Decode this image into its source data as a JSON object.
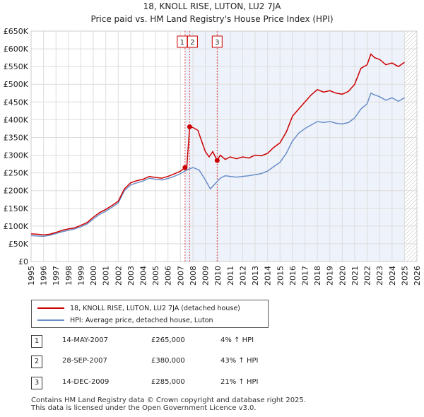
{
  "title": "18, KNOLL RISE, LUTON, LU2 7JA",
  "subtitle": "Price paid vs. HM Land Registry's House Price Index (HPI)",
  "legend": {
    "series1": "18, KNOLL RISE, LUTON, LU2 7JA (detached house)",
    "series2": "HPI: Average price, detached house, Luton"
  },
  "colors": {
    "price": "#cc0000",
    "hpi": "#6b8fc9",
    "shade": "#e8eef8",
    "grid": "#dddddd"
  },
  "transactions": [
    {
      "num": "1",
      "date": "14-MAY-2007",
      "price": "£265,000",
      "hpi": "4% ↑ HPI"
    },
    {
      "num": "2",
      "date": "28-SEP-2007",
      "price": "£380,000",
      "hpi": "43% ↑ HPI"
    },
    {
      "num": "3",
      "date": "14-DEC-2009",
      "price": "£285,000",
      "hpi": "21% ↑ HPI"
    }
  ],
  "footer": {
    "line1": "Contains HM Land Registry data © Crown copyright and database right 2025.",
    "line2": "This data is licensed under the Open Government Licence v3.0."
  },
  "chart_data": {
    "type": "line",
    "xlim": [
      1995,
      2026
    ],
    "ylim": [
      0,
      650000
    ],
    "x_ticks": [
      "1995",
      "1996",
      "1997",
      "1998",
      "1999",
      "2000",
      "2001",
      "2002",
      "2003",
      "2004",
      "2005",
      "2006",
      "2007",
      "2008",
      "2009",
      "2010",
      "2011",
      "2012",
      "2013",
      "2014",
      "2015",
      "2016",
      "2017",
      "2018",
      "2019",
      "2020",
      "2021",
      "2022",
      "2023",
      "2024",
      "2025",
      "2026"
    ],
    "y_ticks": [
      "£0",
      "£50K",
      "£100K",
      "£150K",
      "£200K",
      "£250K",
      "£300K",
      "£350K",
      "£400K",
      "£450K",
      "£500K",
      "£550K",
      "£600K",
      "£650K"
    ],
    "shaded_region_x": [
      2007.37,
      2010.0
    ],
    "hatched_region_x": [
      2025.0,
      2026
    ],
    "grid": true,
    "legend_position": "below chart",
    "series": [
      {
        "name": "18, KNOLL RISE, LUTON, LU2 7JA (detached house)",
        "points": [
          [
            1995.0,
            78000
          ],
          [
            1995.5,
            77000
          ],
          [
            1996.0,
            75000
          ],
          [
            1996.5,
            77000
          ],
          [
            1997.0,
            82000
          ],
          [
            1997.5,
            88000
          ],
          [
            1998.0,
            92000
          ],
          [
            1998.5,
            95000
          ],
          [
            1999.0,
            102000
          ],
          [
            1999.5,
            110000
          ],
          [
            2000.0,
            125000
          ],
          [
            2000.5,
            138000
          ],
          [
            2001.0,
            147000
          ],
          [
            2001.5,
            158000
          ],
          [
            2002.0,
            170000
          ],
          [
            2002.5,
            205000
          ],
          [
            2003.0,
            222000
          ],
          [
            2003.5,
            228000
          ],
          [
            2004.0,
            232000
          ],
          [
            2004.5,
            240000
          ],
          [
            2005.0,
            237000
          ],
          [
            2005.5,
            235000
          ],
          [
            2006.0,
            240000
          ],
          [
            2006.5,
            247000
          ],
          [
            2007.0,
            255000
          ],
          [
            2007.37,
            265000
          ],
          [
            2007.5,
            262000
          ],
          [
            2007.74,
            380000
          ],
          [
            2008.0,
            378000
          ],
          [
            2008.4,
            370000
          ],
          [
            2008.7,
            340000
          ],
          [
            2009.0,
            310000
          ],
          [
            2009.3,
            295000
          ],
          [
            2009.6,
            310000
          ],
          [
            2009.95,
            285000
          ],
          [
            2010.2,
            300000
          ],
          [
            2010.6,
            288000
          ],
          [
            2011.0,
            295000
          ],
          [
            2011.5,
            290000
          ],
          [
            2012.0,
            295000
          ],
          [
            2012.5,
            292000
          ],
          [
            2013.0,
            300000
          ],
          [
            2013.5,
            298000
          ],
          [
            2014.0,
            305000
          ],
          [
            2014.5,
            322000
          ],
          [
            2015.0,
            335000
          ],
          [
            2015.5,
            365000
          ],
          [
            2016.0,
            410000
          ],
          [
            2016.5,
            430000
          ],
          [
            2017.0,
            450000
          ],
          [
            2017.5,
            470000
          ],
          [
            2018.0,
            485000
          ],
          [
            2018.5,
            478000
          ],
          [
            2019.0,
            482000
          ],
          [
            2019.5,
            475000
          ],
          [
            2020.0,
            472000
          ],
          [
            2020.5,
            480000
          ],
          [
            2021.0,
            500000
          ],
          [
            2021.5,
            545000
          ],
          [
            2022.0,
            555000
          ],
          [
            2022.3,
            585000
          ],
          [
            2022.6,
            575000
          ],
          [
            2023.0,
            570000
          ],
          [
            2023.5,
            555000
          ],
          [
            2024.0,
            560000
          ],
          [
            2024.5,
            550000
          ],
          [
            2025.0,
            562000
          ]
        ]
      },
      {
        "name": "HPI: Average price, detached house, Luton",
        "points": [
          [
            1995.0,
            73000
          ],
          [
            1995.5,
            72000
          ],
          [
            1996.0,
            71000
          ],
          [
            1996.5,
            74000
          ],
          [
            1997.0,
            79000
          ],
          [
            1997.5,
            84000
          ],
          [
            1998.0,
            88000
          ],
          [
            1998.5,
            92000
          ],
          [
            1999.0,
            98000
          ],
          [
            1999.5,
            106000
          ],
          [
            2000.0,
            120000
          ],
          [
            2000.5,
            133000
          ],
          [
            2001.0,
            142000
          ],
          [
            2001.5,
            153000
          ],
          [
            2002.0,
            165000
          ],
          [
            2002.5,
            200000
          ],
          [
            2003.0,
            216000
          ],
          [
            2003.5,
            222000
          ],
          [
            2004.0,
            227000
          ],
          [
            2004.5,
            235000
          ],
          [
            2005.0,
            232000
          ],
          [
            2005.5,
            230000
          ],
          [
            2006.0,
            234000
          ],
          [
            2006.5,
            240000
          ],
          [
            2007.0,
            248000
          ],
          [
            2007.5,
            258000
          ],
          [
            2008.0,
            265000
          ],
          [
            2008.5,
            258000
          ],
          [
            2009.0,
            230000
          ],
          [
            2009.4,
            205000
          ],
          [
            2009.8,
            220000
          ],
          [
            2010.2,
            235000
          ],
          [
            2010.6,
            242000
          ],
          [
            2011.0,
            240000
          ],
          [
            2011.5,
            238000
          ],
          [
            2012.0,
            240000
          ],
          [
            2012.5,
            242000
          ],
          [
            2013.0,
            245000
          ],
          [
            2013.5,
            248000
          ],
          [
            2014.0,
            255000
          ],
          [
            2014.5,
            268000
          ],
          [
            2015.0,
            280000
          ],
          [
            2015.5,
            305000
          ],
          [
            2016.0,
            340000
          ],
          [
            2016.5,
            362000
          ],
          [
            2017.0,
            375000
          ],
          [
            2017.5,
            385000
          ],
          [
            2018.0,
            395000
          ],
          [
            2018.5,
            392000
          ],
          [
            2019.0,
            395000
          ],
          [
            2019.5,
            390000
          ],
          [
            2020.0,
            388000
          ],
          [
            2020.5,
            392000
          ],
          [
            2021.0,
            405000
          ],
          [
            2021.5,
            430000
          ],
          [
            2022.0,
            445000
          ],
          [
            2022.3,
            475000
          ],
          [
            2022.6,
            470000
          ],
          [
            2023.0,
            465000
          ],
          [
            2023.5,
            455000
          ],
          [
            2024.0,
            462000
          ],
          [
            2024.5,
            452000
          ],
          [
            2025.0,
            462000
          ]
        ]
      }
    ],
    "markers": [
      {
        "label": "1",
        "x": 2007.37,
        "y": 265000
      },
      {
        "label": "2",
        "x": 2007.74,
        "y": 380000
      },
      {
        "label": "3",
        "x": 2009.95,
        "y": 285000
      }
    ]
  }
}
